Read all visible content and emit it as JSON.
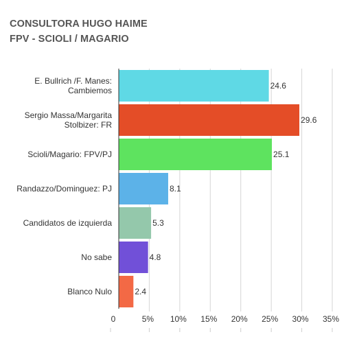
{
  "title": "CONSULTORA HUGO HAIME",
  "subtitle": "FPV - SCIOLI / MAGARIO",
  "chart_data": {
    "type": "bar",
    "orientation": "horizontal",
    "title": "CONSULTORA HUGO HAIME",
    "subtitle": "FPV - SCIOLI / MAGARIO",
    "categories": [
      [
        "E. Bullrich /F. Manes:",
        "Cambiemos"
      ],
      [
        "Sergio Massa/Margarita",
        "Stolbizer: FR"
      ],
      [
        "Scioli/Magario: FPV/PJ"
      ],
      [
        "Randazzo/Dominguez: PJ"
      ],
      [
        "Candidatos de izquierda"
      ],
      [
        "No sabe"
      ],
      [
        "Blanco Nulo"
      ]
    ],
    "values": [
      24.6,
      29.6,
      25.1,
      8.1,
      5.3,
      4.8,
      2.4
    ],
    "value_labels": [
      "24.6",
      "29.6",
      "25.1",
      "8.1",
      "5.3",
      "4.8",
      "2.4"
    ],
    "colors": [
      "#5fd9e5",
      "#e44d27",
      "#5ee35f",
      "#5cb2e8",
      "#94c8ab",
      "#7150d8",
      "#f36945"
    ],
    "xlim": [
      0,
      35
    ],
    "x_ticks": [
      "0",
      "5%",
      "10%",
      "15%",
      "20%",
      "25%",
      "30%",
      "35%"
    ],
    "x_tick_values": [
      0,
      5,
      10,
      15,
      20,
      25,
      30,
      35
    ],
    "grid": true,
    "legend": "none"
  }
}
